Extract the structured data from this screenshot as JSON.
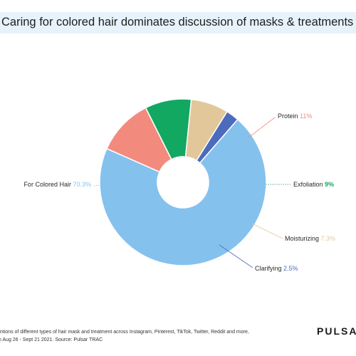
{
  "title": "Caring for colored hair dominates discussion of masks & treatments",
  "footer": {
    "line1": "entions of different types of hair mask and treatment across Instagram, Pinterest, TikTok, Twitter, Reddit and more,",
    "line2": "m Aug 26 - Sept 21 2021. Source: Pulsar TRAC"
  },
  "brand": "PULSAR",
  "chart_data": {
    "type": "pie",
    "donut": true,
    "legend": "none",
    "series": [
      {
        "name": "For Colored Hair",
        "value_label": "70.3%",
        "value": 70.3,
        "color": "#85c1ed"
      },
      {
        "name": "Protein",
        "value_label": "11%",
        "value": 11,
        "color": "#f28b7e"
      },
      {
        "name": "Exfoliation",
        "value_label": "9%",
        "value": 9,
        "color": "#12a862"
      },
      {
        "name": "Moisturizing",
        "value_label": "7.3%",
        "value": 7.3,
        "color": "#e2c79a"
      },
      {
        "name": "Clarifying",
        "value_label": "2.5%",
        "value": 2.5,
        "color": "#4d6bbd"
      }
    ]
  }
}
